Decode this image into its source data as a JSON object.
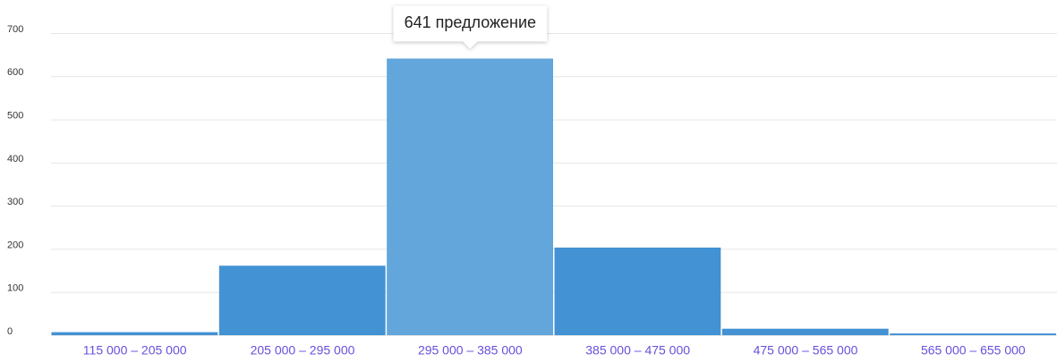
{
  "chart_data": {
    "type": "bar",
    "categories": [
      "115 000 – 205 000",
      "205 000 – 295 000",
      "295 000 – 385 000",
      "385 000 – 475 000",
      "475 000 – 565 000",
      "565 000 – 655 000"
    ],
    "values": [
      7,
      161,
      641,
      203,
      15,
      4
    ],
    "value_labels": [
      null,
      null,
      "641 предложение",
      null,
      null,
      null
    ],
    "colors": [
      "#4392d4",
      "#4392d4",
      "#62a6dc",
      "#4392d4",
      "#4392d4",
      "#4392d4"
    ],
    "ylim": [
      0,
      700
    ],
    "yticks": [
      0,
      100,
      200,
      300,
      400,
      500,
      600,
      700
    ],
    "grid": true
  }
}
